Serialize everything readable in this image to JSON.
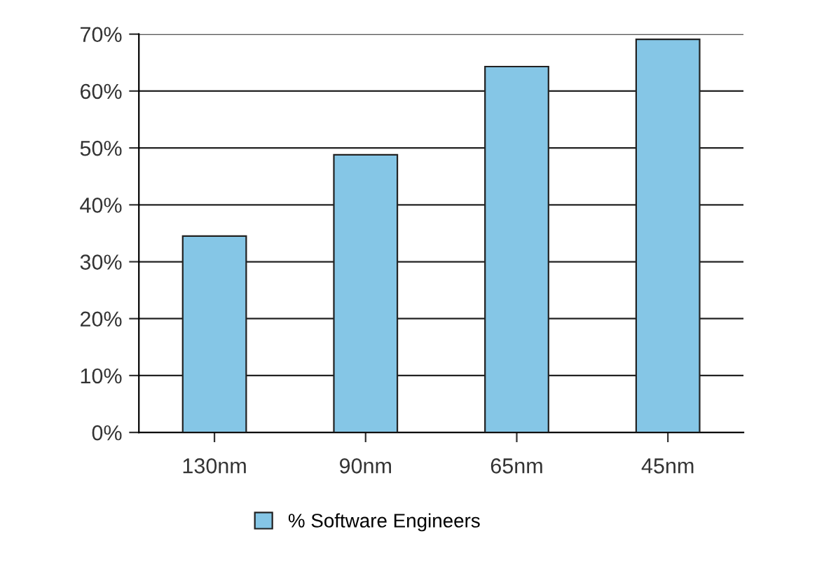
{
  "chart_data": {
    "type": "bar",
    "categories": [
      "130nm",
      "90nm",
      "65nm",
      "45nm"
    ],
    "series": [
      {
        "name": "% Software Engineers",
        "color": "#85c6e6",
        "values": [
          34.5,
          48.8,
          64.3,
          69.1
        ]
      }
    ],
    "ylim": [
      0,
      70
    ],
    "yticks": [
      {
        "value": 0,
        "label": "0%"
      },
      {
        "value": 10,
        "label": "10%"
      },
      {
        "value": 20,
        "label": "20%"
      },
      {
        "value": 30,
        "label": "30%"
      },
      {
        "value": 40,
        "label": "40%"
      },
      {
        "value": 50,
        "label": "50%"
      },
      {
        "value": 60,
        "label": "60%"
      },
      {
        "value": 70,
        "label": "70%"
      }
    ],
    "grid": "y",
    "legend": "bottom"
  }
}
